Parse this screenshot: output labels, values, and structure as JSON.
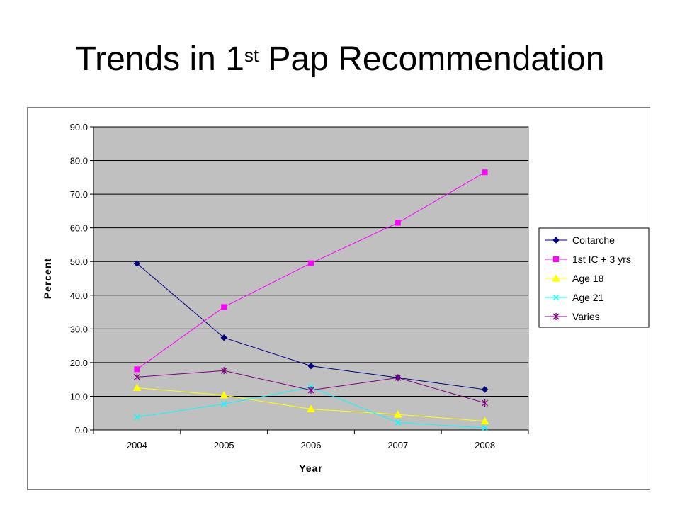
{
  "slide": {
    "title_main": "Trends in 1",
    "title_sup": "st",
    "title_rest": " Pap Recommendation"
  },
  "chart_data": {
    "type": "line",
    "title": "Trends in 1st Pap Recommendation",
    "xlabel": "Year",
    "ylabel": "Percent",
    "categories": [
      "2004",
      "2005",
      "2006",
      "2007",
      "2008"
    ],
    "ylim": [
      0,
      90
    ],
    "yticks": [
      "0.0",
      "10.0",
      "20.0",
      "30.0",
      "40.0",
      "50.0",
      "60.0",
      "70.0",
      "80.0",
      "90.0"
    ],
    "grid": true,
    "legend_position": "right",
    "plot_background": "#c0c0c0",
    "series": [
      {
        "name": "Coitarche",
        "color": "#000080",
        "marker": "diamond",
        "values": [
          49.4,
          27.4,
          19.0,
          15.5,
          12.0
        ]
      },
      {
        "name": "1st IC + 3 yrs",
        "color": "#ff00ff",
        "marker": "square",
        "values": [
          18.0,
          36.5,
          49.5,
          61.5,
          76.5
        ]
      },
      {
        "name": "Age 18",
        "color": "#ffff00",
        "marker": "triangle",
        "values": [
          12.5,
          10.3,
          6.2,
          4.6,
          2.6
        ]
      },
      {
        "name": "Age 21",
        "color": "#00ffff",
        "marker": "x",
        "values": [
          3.8,
          7.7,
          12.7,
          2.2,
          0.6
        ]
      },
      {
        "name": "Varies",
        "color": "#800080",
        "marker": "star",
        "values": [
          15.7,
          17.6,
          11.8,
          15.5,
          8.0
        ]
      }
    ]
  }
}
